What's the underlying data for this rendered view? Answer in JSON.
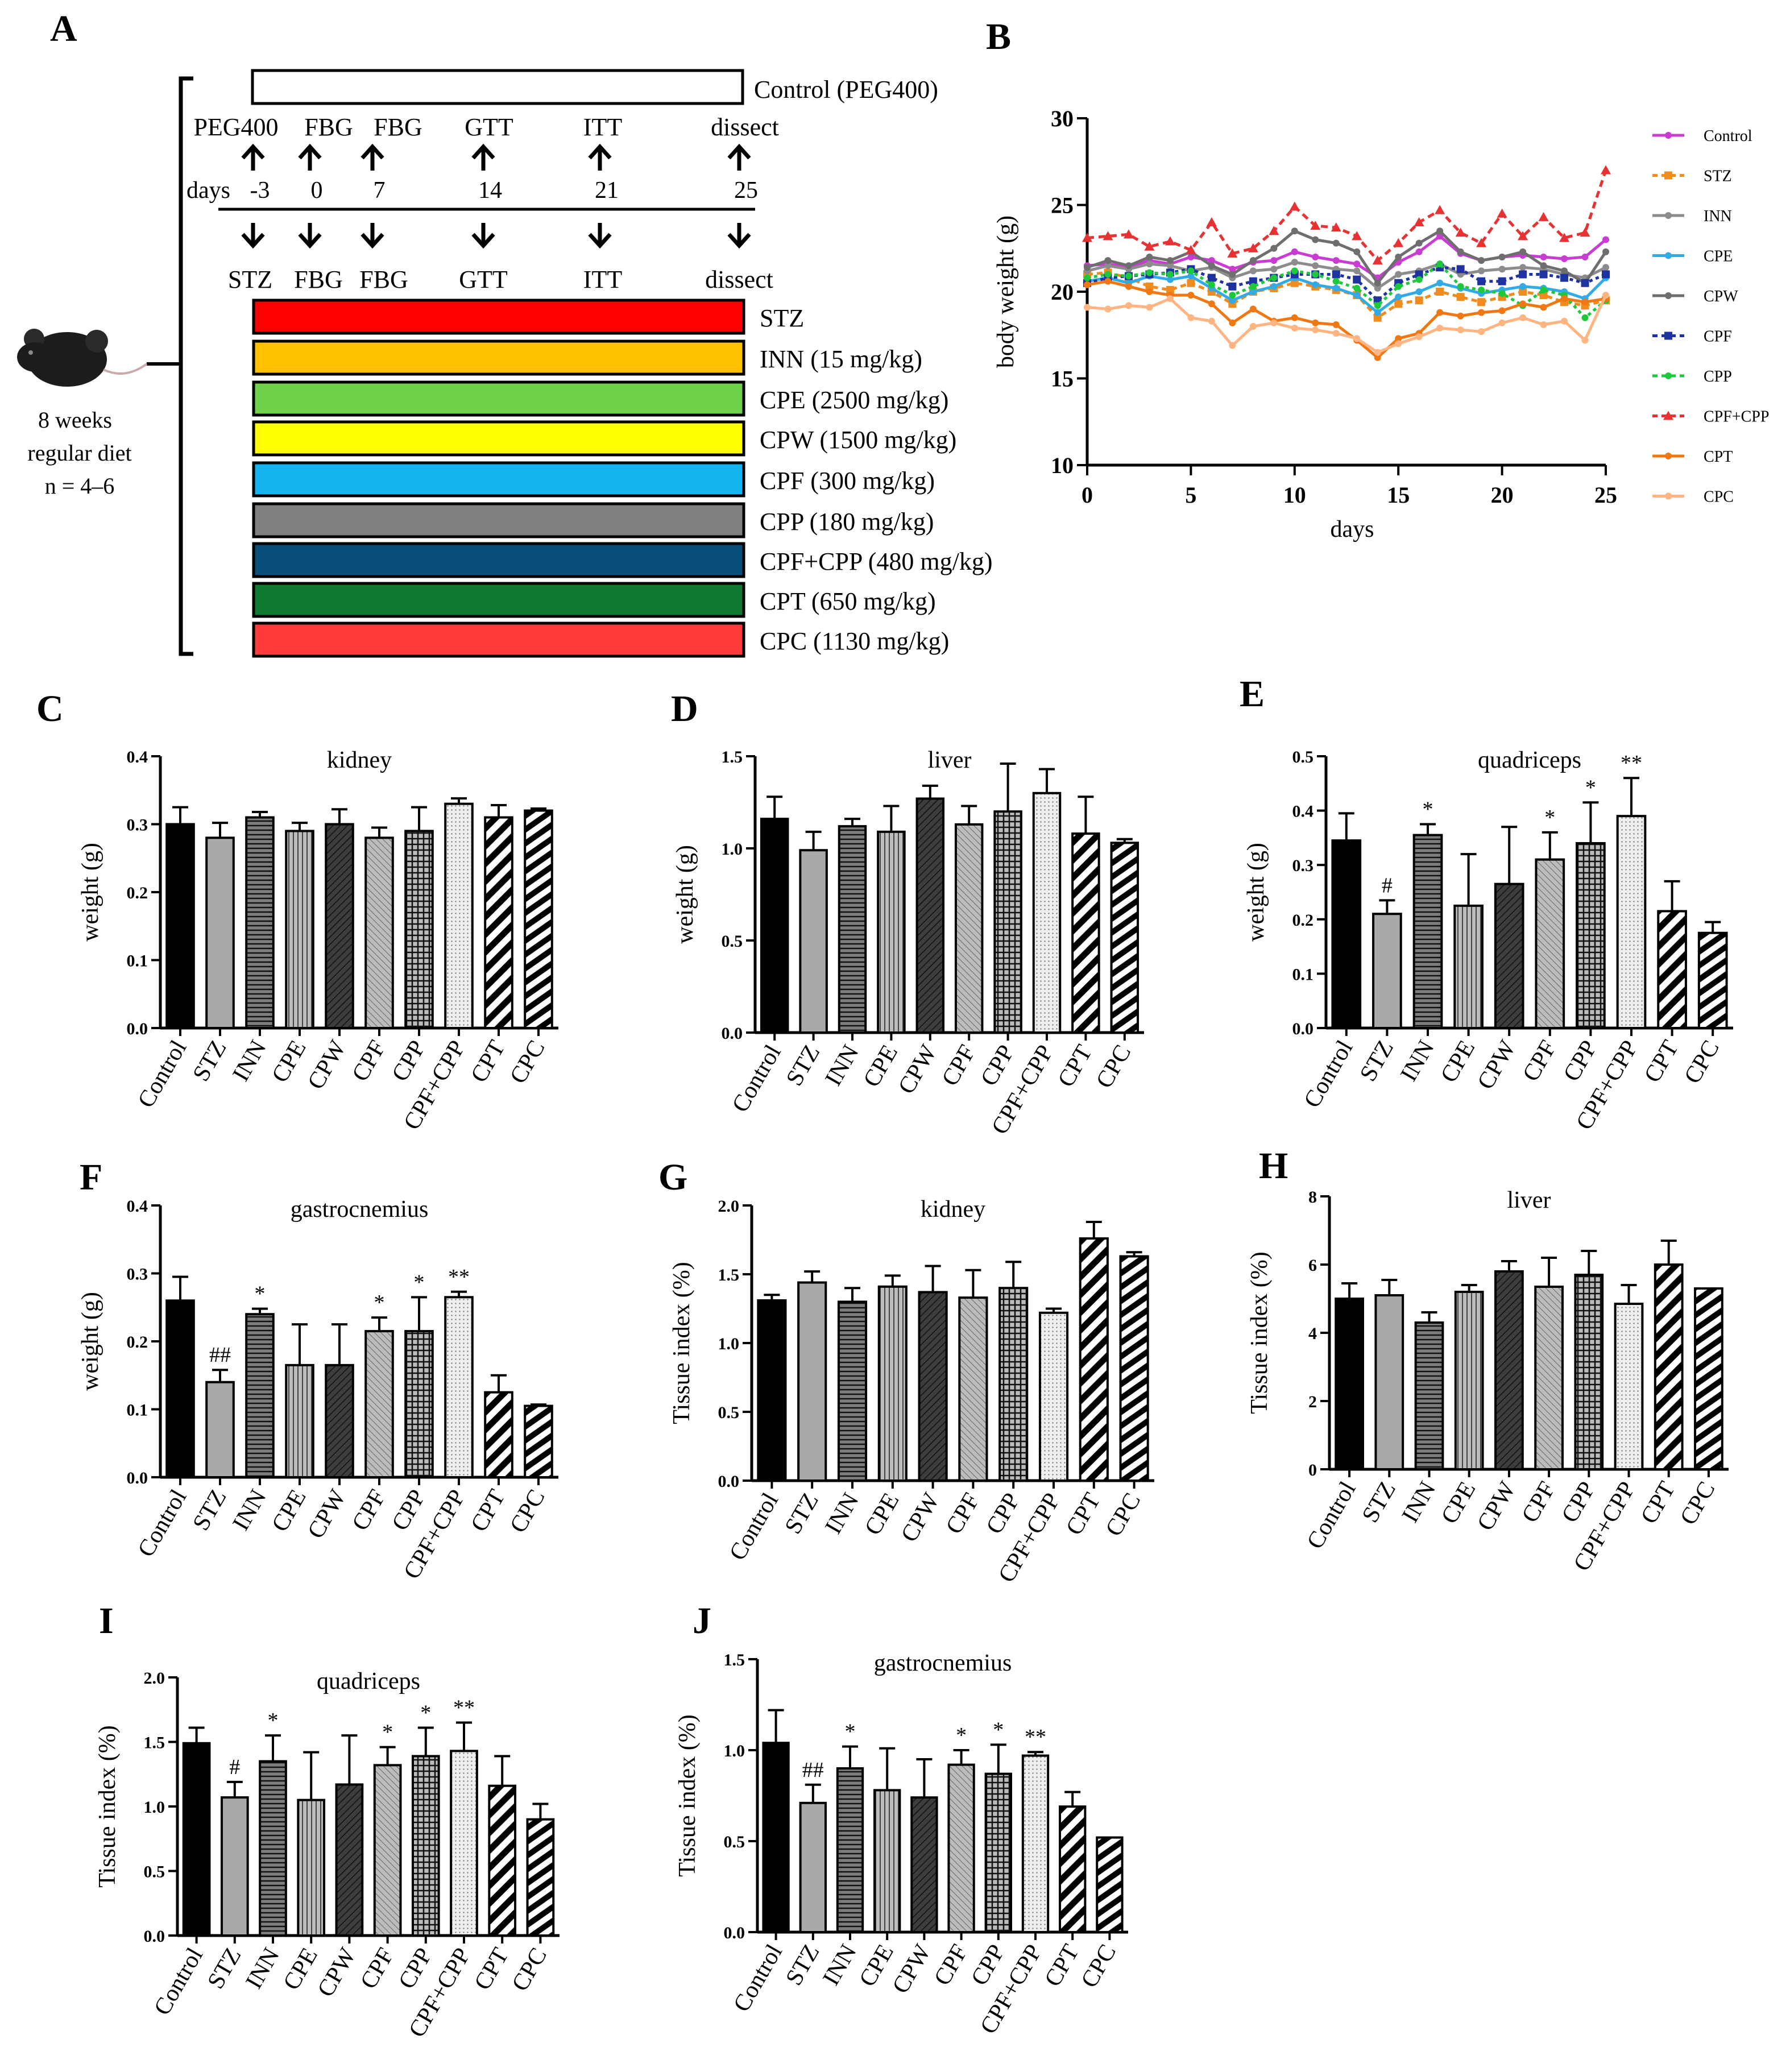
{
  "panel_letters": [
    "A",
    "B",
    "C",
    "D",
    "E",
    "F",
    "G",
    "H",
    "I",
    "J"
  ],
  "schema": {
    "control_label": "Control (PEG400)",
    "top_events": [
      "PEG400",
      "FBG",
      "FBG",
      "GTT",
      "ITT",
      "dissect"
    ],
    "days_label": "days",
    "day_values": [
      "-3",
      "0",
      "7",
      "14",
      "21",
      "25"
    ],
    "bottom_events": [
      "STZ",
      "FBG",
      "FBG",
      "GTT",
      "ITT",
      "dissect"
    ],
    "mouse_caption": [
      "8 weeks",
      "regular diet",
      "n = 4–6"
    ],
    "groups": [
      {
        "label": "STZ",
        "color": "#ff0000"
      },
      {
        "label": "INN (15 mg/kg)",
        "color": "#ffc000"
      },
      {
        "label": "CPE (2500 mg/kg)",
        "color": "#70d24a"
      },
      {
        "label": "CPW (1500 mg/kg)",
        "color": "#ffff00"
      },
      {
        "label": "CPF (300 mg/kg)",
        "color": "#14b4f0"
      },
      {
        "label": "CPP (180 mg/kg)",
        "color": "#808080"
      },
      {
        "label": "CPF+CPP (480 mg/kg)",
        "color": "#0a4f7c"
      },
      {
        "label": "CPT (650 mg/kg)",
        "color": "#0f7a30"
      },
      {
        "label": "CPC (1130 mg/kg)",
        "color": "#ff3b3b"
      }
    ]
  },
  "chart_data": [
    {
      "id": "B",
      "type": "line",
      "title": "",
      "xlabel": "days",
      "ylabel": "body weight (g)",
      "xlim": [
        0,
        25
      ],
      "ylim": [
        10,
        30
      ],
      "xticks": [
        0,
        5,
        10,
        15,
        20,
        25
      ],
      "yticks": [
        10,
        15,
        20,
        25,
        30
      ],
      "x": [
        0,
        1,
        2,
        3,
        4,
        5,
        6,
        7,
        8,
        9,
        10,
        11,
        12,
        13,
        14,
        15,
        16,
        17,
        18,
        19,
        20,
        21,
        22,
        23,
        24,
        25
      ],
      "series": [
        {
          "name": "Control",
          "color": "#c83cd2",
          "dash": "",
          "marker": "circle",
          "values": [
            21.5,
            21.6,
            21.4,
            21.8,
            21.6,
            22,
            21.8,
            21.3,
            21.7,
            21.8,
            22.3,
            22,
            21.8,
            21.6,
            20.8,
            21.7,
            22.3,
            23.2,
            22.2,
            21.8,
            22,
            22.1,
            22,
            21.9,
            22,
            23
          ]
        },
        {
          "name": "STZ",
          "color": "#f08c1e",
          "dash": "10,7",
          "marker": "square",
          "values": [
            21,
            21.1,
            20.8,
            20.3,
            20.1,
            20.5,
            20,
            19.3,
            20,
            20.2,
            20.5,
            20.3,
            20.1,
            19.8,
            18.5,
            19.3,
            19.5,
            20,
            19.7,
            19.4,
            19.7,
            20,
            19.8,
            19.4,
            19.2,
            19.5
          ]
        },
        {
          "name": "INN",
          "color": "#8c8c8c",
          "dash": "",
          "marker": "circle",
          "values": [
            21.2,
            21.5,
            21.3,
            21.6,
            21.5,
            21.2,
            21.4,
            20.8,
            21.2,
            21.3,
            21.7,
            21.5,
            21.3,
            21.2,
            20.2,
            21,
            21.2,
            21.6,
            21,
            21.2,
            21.3,
            21.4,
            21.3,
            21,
            20.8,
            21.4
          ]
        },
        {
          "name": "CPE",
          "color": "#32aae6",
          "dash": "",
          "marker": "circle",
          "values": [
            20.6,
            20.8,
            20.5,
            20.9,
            20.7,
            20.9,
            20.2,
            19.5,
            20,
            20.3,
            20.8,
            20.4,
            20.2,
            19.8,
            18.8,
            19.7,
            20,
            20.5,
            20.2,
            19.9,
            20.1,
            20.3,
            20.2,
            20,
            19.6,
            20.8
          ]
        },
        {
          "name": "CPW",
          "color": "#6e6e6e",
          "dash": "",
          "marker": "circle",
          "values": [
            21.4,
            21.8,
            21.5,
            22,
            21.8,
            22.3,
            21.5,
            21,
            21.8,
            22.5,
            23.5,
            23,
            22.8,
            22.3,
            20.5,
            22,
            22.8,
            23.5,
            22.3,
            21.8,
            22,
            22.3,
            21.5,
            21.2,
            20.5,
            22.3
          ]
        },
        {
          "name": "CPF",
          "color": "#1e32a0",
          "dash": "6,6",
          "marker": "square",
          "values": [
            20.5,
            20.8,
            20.9,
            21,
            21.1,
            21.3,
            20.8,
            20.3,
            20.6,
            20.8,
            21,
            21,
            21,
            20.7,
            19.5,
            20.5,
            21,
            21.4,
            21.3,
            20.6,
            20.6,
            21,
            21,
            20.8,
            20.5,
            21
          ]
        },
        {
          "name": "CPP",
          "color": "#1ec83c",
          "dash": "6,6",
          "marker": "circle",
          "values": [
            20.8,
            21,
            20.9,
            21.1,
            21,
            21.2,
            20.4,
            19.8,
            20.3,
            20.8,
            21.2,
            21,
            20.6,
            20.2,
            19.2,
            20.3,
            20.7,
            21.6,
            20.3,
            20.1,
            19.9,
            19.2,
            20.1,
            19.8,
            18.5,
            19.5
          ]
        },
        {
          "name": "CPF+CPP",
          "color": "#e63232",
          "dash": "12,8",
          "marker": "triangle",
          "values": [
            23.1,
            23.2,
            23.3,
            22.6,
            22.9,
            22.4,
            24,
            22.2,
            22.5,
            23.5,
            24.9,
            23.8,
            23.7,
            23.2,
            21.8,
            22.8,
            24,
            24.7,
            23.4,
            22.8,
            24.5,
            23.2,
            24.3,
            23.1,
            23.4,
            27
          ]
        },
        {
          "name": "CPT",
          "color": "#f07814",
          "dash": "",
          "marker": "circle",
          "values": [
            20.4,
            20.6,
            20.3,
            20,
            19.8,
            19.8,
            19.3,
            18.2,
            19,
            18.3,
            18.5,
            18.2,
            18.1,
            17.2,
            16.2,
            17.3,
            17.6,
            18.8,
            18.6,
            18.8,
            18.9,
            19.3,
            19.1,
            19.6,
            19.4,
            19.6
          ]
        },
        {
          "name": "CPC",
          "color": "#ffb482",
          "dash": "",
          "marker": "circle",
          "values": [
            19.1,
            19,
            19.2,
            19.1,
            19.6,
            18.5,
            18.3,
            16.9,
            18,
            18.2,
            17.9,
            17.8,
            17.6,
            17.3,
            16.5,
            17,
            17.4,
            17.9,
            17.8,
            17.7,
            18.2,
            18.5,
            18.1,
            18.3,
            17.2,
            19.8
          ]
        }
      ]
    },
    {
      "id": "C",
      "type": "bar",
      "title": "kidney",
      "ylabel": "weight (g)",
      "ylim": [
        0,
        0.4
      ],
      "yticks": [
        "0.0",
        "0.1",
        "0.2",
        "0.3",
        "0.4"
      ],
      "categories": [
        "Control",
        "STZ",
        "INN",
        "CPE",
        "CPW",
        "CPF",
        "CPP",
        "CPF+CPP",
        "CPT",
        "CPC"
      ],
      "values": [
        0.3,
        0.28,
        0.31,
        0.29,
        0.3,
        0.28,
        0.29,
        0.33,
        0.31,
        0.32
      ],
      "errors": [
        0.025,
        0.022,
        0.008,
        0.012,
        0.022,
        0.015,
        0.035,
        0.008,
        0.018,
        0.003
      ],
      "annotations": [
        "",
        "",
        "",
        "",
        "",
        "",
        "",
        "",
        "",
        ""
      ]
    },
    {
      "id": "D",
      "type": "bar",
      "title": "liver",
      "ylabel": "weight (g)",
      "ylim": [
        0,
        1.5
      ],
      "yticks": [
        "0.0",
        "0.5",
        "1.0",
        "1.5"
      ],
      "categories": [
        "Control",
        "STZ",
        "INN",
        "CPE",
        "CPW",
        "CPF",
        "CPP",
        "CPF+CPP",
        "CPT",
        "CPC"
      ],
      "values": [
        1.16,
        0.99,
        1.12,
        1.09,
        1.27,
        1.13,
        1.2,
        1.3,
        1.08,
        1.03
      ],
      "errors": [
        0.12,
        0.1,
        0.04,
        0.14,
        0.07,
        0.1,
        0.26,
        0.13,
        0.2,
        0.02
      ],
      "annotations": [
        "",
        "",
        "",
        "",
        "",
        "",
        "",
        "",
        "",
        ""
      ]
    },
    {
      "id": "E",
      "type": "bar",
      "title": "quadriceps",
      "ylabel": "weight (g)",
      "ylim": [
        0,
        0.5
      ],
      "yticks": [
        "0.0",
        "0.1",
        "0.2",
        "0.3",
        "0.4",
        "0.5"
      ],
      "categories": [
        "Control",
        "STZ",
        "INN",
        "CPE",
        "CPW",
        "CPF",
        "CPP",
        "CPF+CPP",
        "CPT",
        "CPC"
      ],
      "values": [
        0.345,
        0.21,
        0.355,
        0.225,
        0.265,
        0.31,
        0.34,
        0.39,
        0.215,
        0.175
      ],
      "errors": [
        0.05,
        0.025,
        0.02,
        0.095,
        0.105,
        0.05,
        0.075,
        0.07,
        0.055,
        0.02
      ],
      "annotations": [
        "",
        "#",
        "*",
        "",
        "",
        "*",
        "*",
        "**",
        "",
        ""
      ]
    },
    {
      "id": "F",
      "type": "bar",
      "title": "gastrocnemius",
      "ylabel": "weight (g)",
      "ylim": [
        0,
        0.4
      ],
      "yticks": [
        "0.0",
        "0.1",
        "0.2",
        "0.3",
        "0.4"
      ],
      "categories": [
        "Control",
        "STZ",
        "INN",
        "CPE",
        "CPW",
        "CPF",
        "CPP",
        "CPF+CPP",
        "CPT",
        "CPC"
      ],
      "values": [
        0.26,
        0.14,
        0.24,
        0.165,
        0.165,
        0.215,
        0.215,
        0.265,
        0.125,
        0.105
      ],
      "errors": [
        0.035,
        0.018,
        0.008,
        0.06,
        0.06,
        0.02,
        0.05,
        0.008,
        0.025,
        0.002
      ],
      "annotations": [
        "",
        "##",
        "*",
        "",
        "",
        "*",
        "*",
        "**",
        "",
        ""
      ]
    },
    {
      "id": "G",
      "type": "bar",
      "title": "kidney",
      "ylabel": "Tissue index (%)",
      "ylim": [
        0,
        2.0
      ],
      "yticks": [
        "0.0",
        "0.5",
        "1.0",
        "1.5",
        "2.0"
      ],
      "categories": [
        "Control",
        "STZ",
        "INN",
        "CPE",
        "CPW",
        "CPF",
        "CPP",
        "CPF+CPP",
        "CPT",
        "CPC"
      ],
      "values": [
        1.31,
        1.44,
        1.3,
        1.41,
        1.37,
        1.33,
        1.4,
        1.22,
        1.76,
        1.63
      ],
      "errors": [
        0.04,
        0.08,
        0.1,
        0.08,
        0.19,
        0.2,
        0.19,
        0.03,
        0.12,
        0.03
      ],
      "annotations": [
        "",
        "",
        "",
        "",
        "",
        "",
        "",
        "",
        "",
        ""
      ]
    },
    {
      "id": "H",
      "type": "bar",
      "title": "liver",
      "ylabel": "Tissue index (%)",
      "ylim": [
        0,
        8
      ],
      "yticks": [
        "0",
        "2",
        "4",
        "6",
        "8"
      ],
      "categories": [
        "Control",
        "STZ",
        "INN",
        "CPE",
        "CPW",
        "CPF",
        "CPP",
        "CPF+CPP",
        "CPT",
        "CPC"
      ],
      "values": [
        5.0,
        5.1,
        4.3,
        5.2,
        5.8,
        5.35,
        5.7,
        4.85,
        6.0,
        5.3
      ],
      "errors": [
        0.45,
        0.45,
        0.3,
        0.2,
        0.3,
        0.85,
        0.7,
        0.55,
        0.7,
        0.0
      ],
      "annotations": [
        "",
        "",
        "",
        "",
        "",
        "",
        "",
        "",
        "",
        ""
      ]
    },
    {
      "id": "I",
      "type": "bar",
      "title": "quadriceps",
      "ylabel": "Tissue index (%)",
      "ylim": [
        0,
        2.0
      ],
      "yticks": [
        "0.0",
        "0.5",
        "1.0",
        "1.5",
        "2.0"
      ],
      "categories": [
        "Control",
        "STZ",
        "INN",
        "CPE",
        "CPW",
        "CPF",
        "CPP",
        "CPF+CPP",
        "CPT",
        "CPC"
      ],
      "values": [
        1.49,
        1.07,
        1.35,
        1.05,
        1.17,
        1.32,
        1.39,
        1.43,
        1.16,
        0.9
      ],
      "errors": [
        0.12,
        0.12,
        0.2,
        0.37,
        0.38,
        0.14,
        0.22,
        0.22,
        0.23,
        0.12
      ],
      "annotations": [
        "",
        "#",
        "*",
        "",
        "",
        "*",
        "*",
        "**",
        "",
        ""
      ]
    },
    {
      "id": "J",
      "type": "bar",
      "title": "gastrocnemius",
      "ylabel": "Tissue index (%)",
      "ylim": [
        0,
        1.5
      ],
      "yticks": [
        "0.0",
        "0.5",
        "1.0",
        "1.5"
      ],
      "categories": [
        "Control",
        "STZ",
        "INN",
        "CPE",
        "CPW",
        "CPF",
        "CPP",
        "CPF+CPP",
        "CPT",
        "CPC"
      ],
      "values": [
        1.04,
        0.71,
        0.9,
        0.78,
        0.74,
        0.92,
        0.87,
        0.97,
        0.69,
        0.52
      ],
      "errors": [
        0.18,
        0.1,
        0.12,
        0.23,
        0.21,
        0.08,
        0.16,
        0.02,
        0.08,
        0.0
      ],
      "annotations": [
        "",
        "##",
        "*",
        "",
        "",
        "*",
        "*",
        "**",
        "",
        ""
      ]
    }
  ]
}
